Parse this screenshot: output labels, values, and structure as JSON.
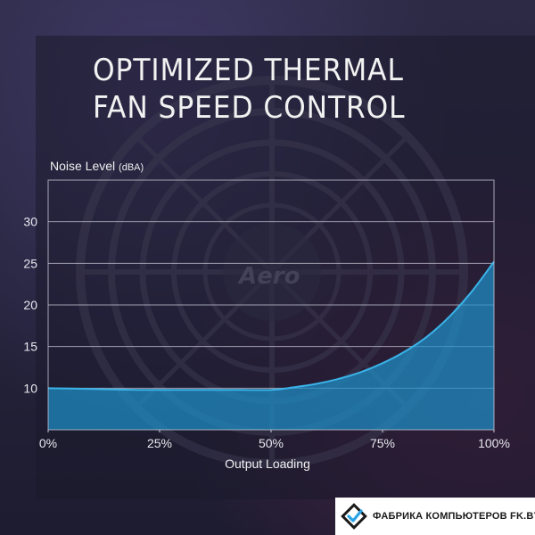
{
  "title": "OPTIMIZED THERMAL FAN SPEED CONTROL",
  "colors": {
    "curve": "#3ab3e8",
    "fill": "#1f8fc8",
    "grid": "#c8c8d6",
    "background": "#26253c"
  },
  "background_brand_text": "Aero",
  "watermark": {
    "text": "ФАБРИКА КОМПЬЮТЕРОВ FK.BY",
    "logo_icon": "diamond-check-logo-icon"
  },
  "chart_data": {
    "type": "area",
    "title": "",
    "xlabel": "Output Loading",
    "ylabel": "Noise Level",
    "ylabel_unit": "(dBA)",
    "x": [
      0,
      10,
      20,
      30,
      40,
      50,
      55,
      60,
      65,
      70,
      75,
      80,
      85,
      90,
      95,
      100
    ],
    "y": [
      10,
      9.9,
      9.8,
      9.8,
      9.8,
      9.8,
      10.1,
      10.5,
      11.1,
      11.9,
      13.0,
      14.4,
      16.2,
      18.6,
      21.6,
      25.2
    ],
    "xlim": [
      0,
      100
    ],
    "ylim": [
      5,
      35
    ],
    "x_ticks": [
      0,
      25,
      50,
      75,
      100
    ],
    "x_tick_labels": [
      "0%",
      "25%",
      "50%",
      "75%",
      "100%"
    ],
    "y_ticks": [
      10,
      15,
      20,
      25,
      30
    ],
    "y_tick_labels": [
      "10",
      "15",
      "20",
      "25",
      "30"
    ],
    "grid": true
  }
}
